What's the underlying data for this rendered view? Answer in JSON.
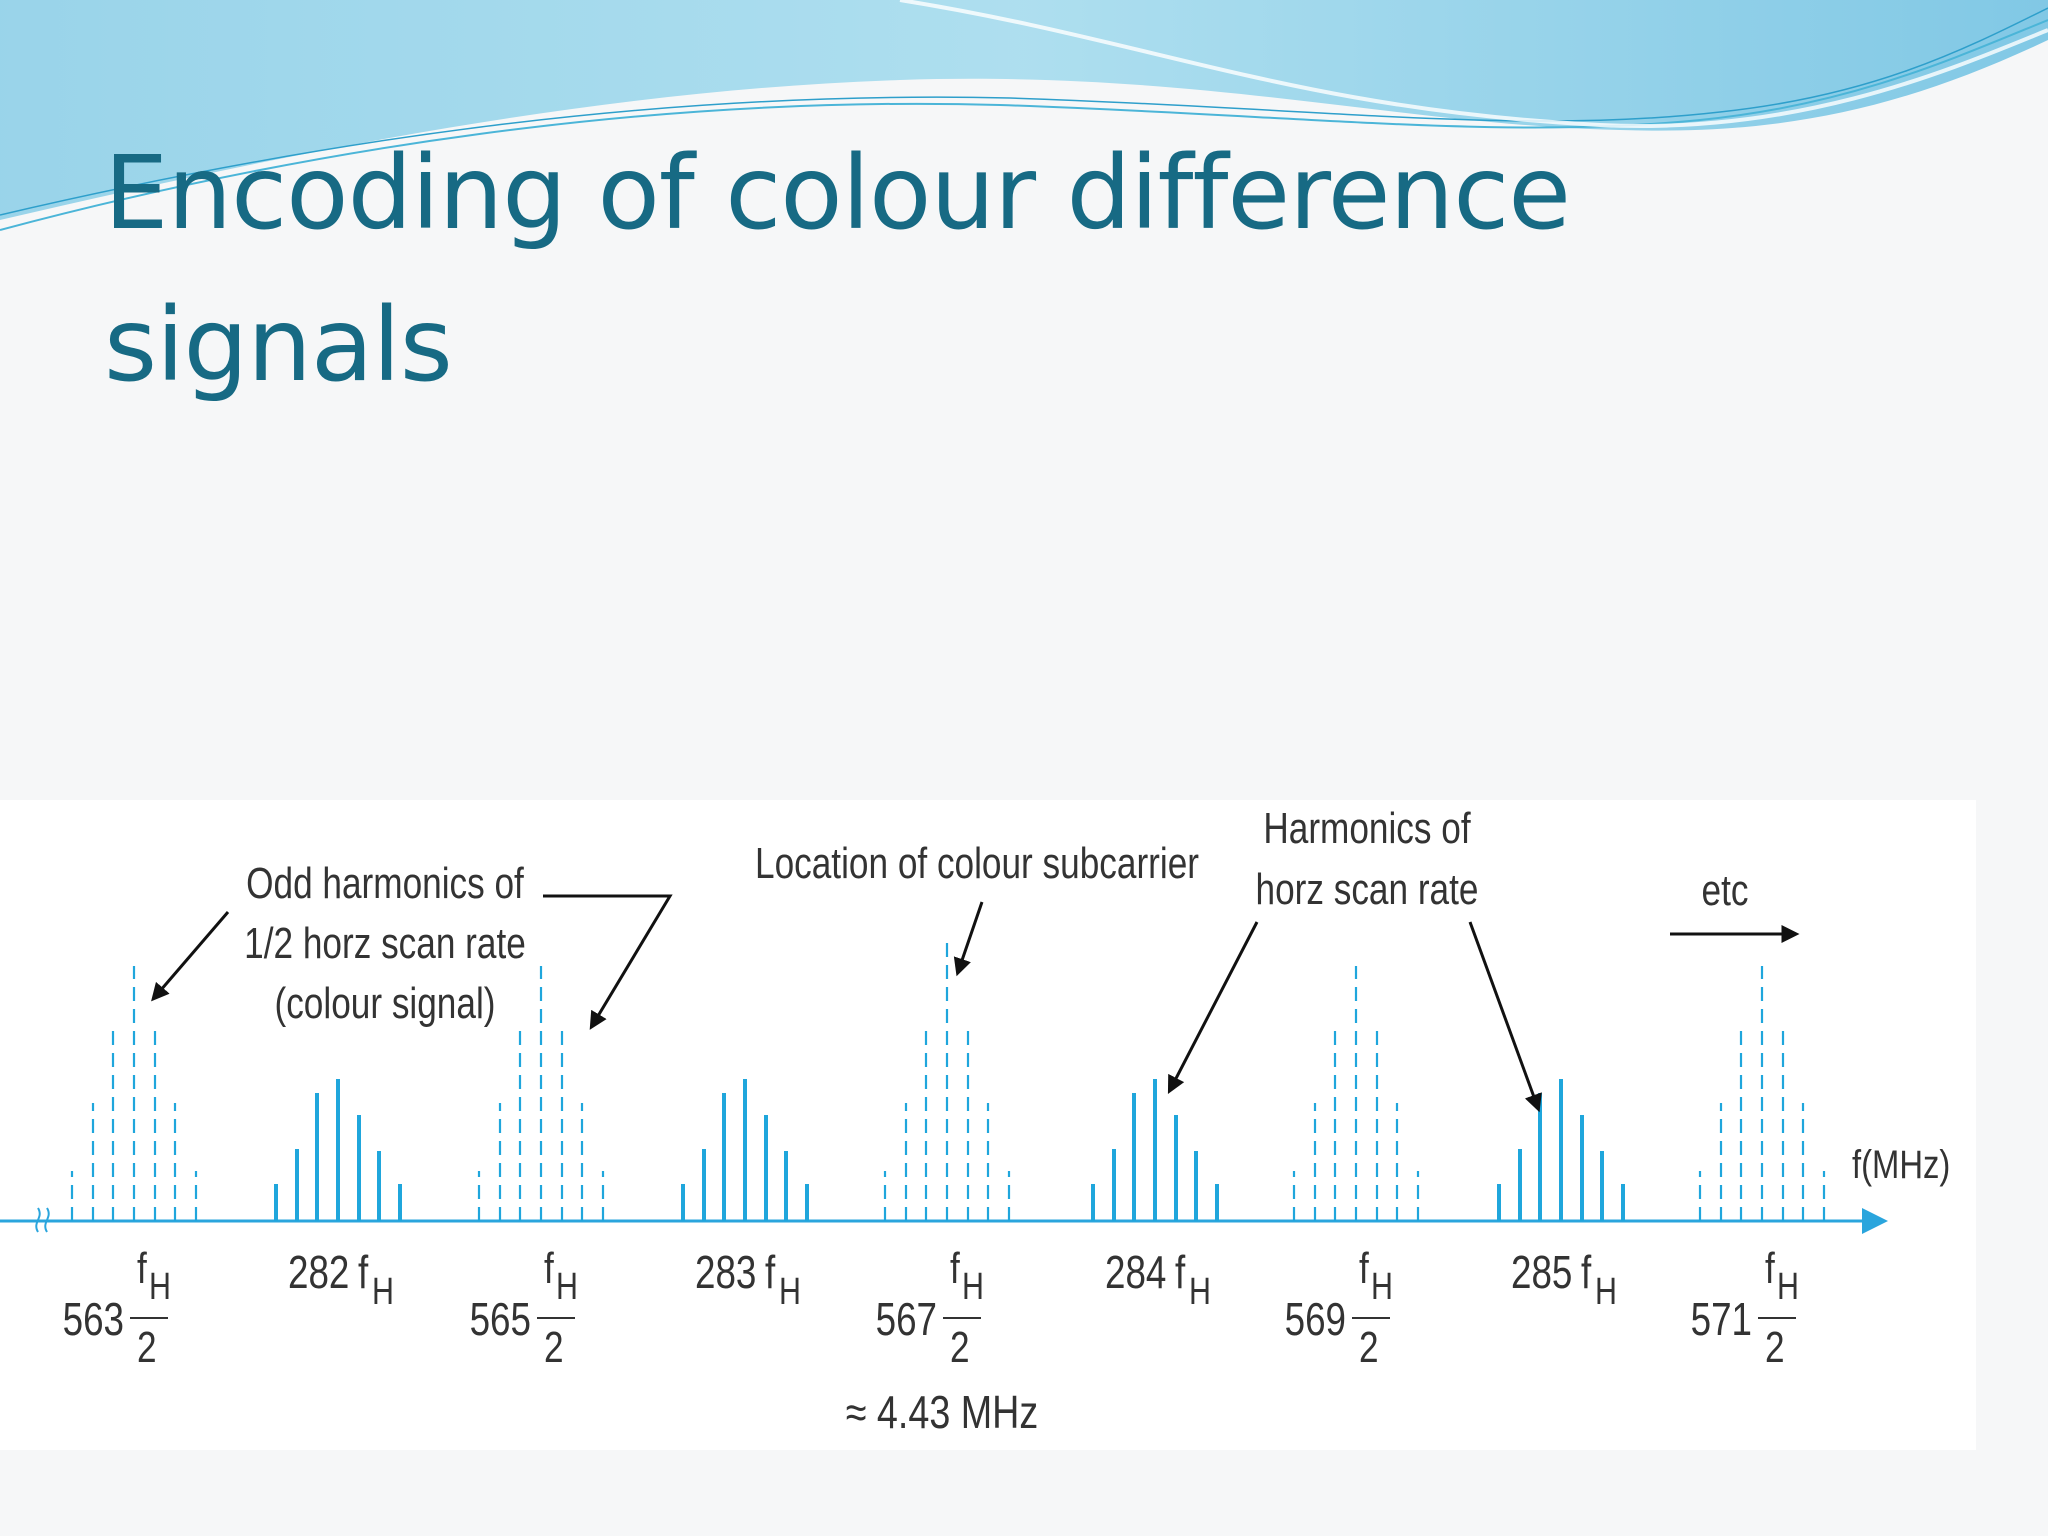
{
  "slide": {
    "title_line1": "Encoding of colour difference",
    "title_line2": "signals"
  },
  "diagram": {
    "annotations": {
      "odd_harmonics": [
        "Odd harmonics of",
        "1/2 horz scan rate",
        "(colour signal)"
      ],
      "subcarrier": "Location of colour subcarrier",
      "harmonics": [
        "Harmonics of",
        "horz scan rate"
      ],
      "etc": "etc",
      "approx": "≈ 4.43 MHz",
      "axis_label": "f(MHz)"
    },
    "clusters": [
      {
        "type": "odd",
        "number": "563",
        "numerator": "f",
        "sub": "H",
        "denominator": "2"
      },
      {
        "type": "harmonic",
        "number": "282",
        "symbol": "f",
        "sub": "H"
      },
      {
        "type": "odd",
        "number": "565",
        "numerator": "f",
        "sub": "H",
        "denominator": "2"
      },
      {
        "type": "harmonic",
        "number": "283",
        "symbol": "f",
        "sub": "H"
      },
      {
        "type": "odd",
        "number": "567",
        "numerator": "f",
        "sub": "H",
        "denominator": "2"
      },
      {
        "type": "harmonic",
        "number": "284",
        "symbol": "f",
        "sub": "H"
      },
      {
        "type": "odd",
        "number": "569",
        "numerator": "f",
        "sub": "H",
        "denominator": "2"
      },
      {
        "type": "harmonic",
        "number": "285",
        "symbol": "f",
        "sub": "H"
      },
      {
        "type": "odd",
        "number": "571",
        "numerator": "f",
        "sub": "H",
        "denominator": "2"
      }
    ],
    "colors": {
      "signal": "#1fa6dc",
      "axis": "#2aa5dd",
      "title": "#176a84",
      "arrow": "#111111"
    },
    "line_styles": {
      "odd": "dashed",
      "harmonic": "solid"
    }
  }
}
